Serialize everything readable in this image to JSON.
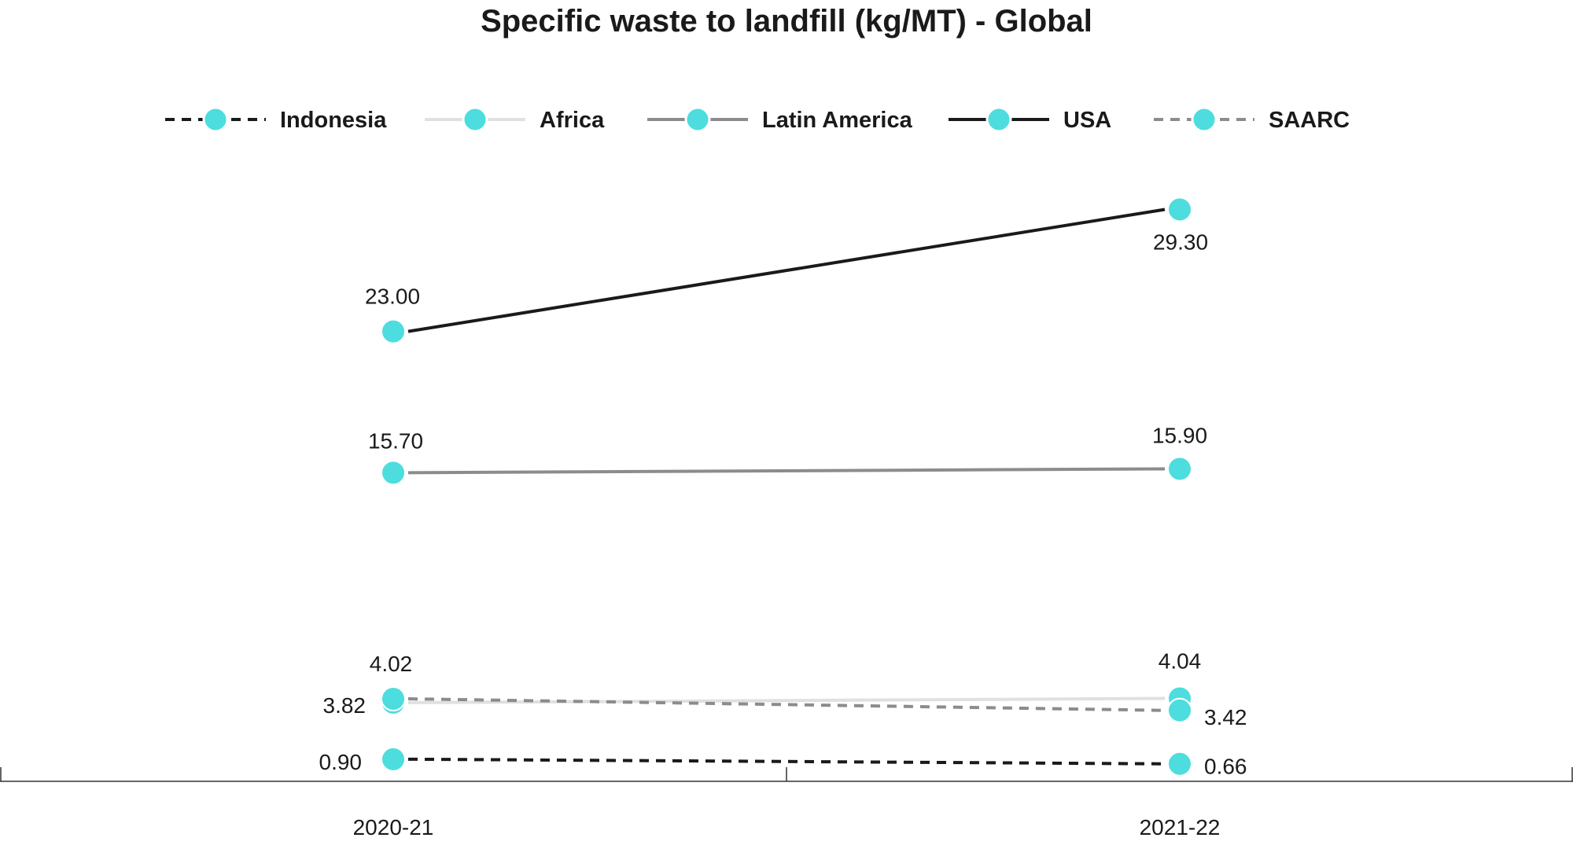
{
  "chart_data": {
    "type": "line",
    "title": "Specific waste to landfill (kg/MT) - Global",
    "xlabel": "",
    "ylabel": "",
    "categories": [
      "2020-21",
      "2021-22"
    ],
    "ylim": [
      0,
      32
    ],
    "grid": false,
    "legend_position": "top",
    "marker_color": "#4dddde",
    "series": [
      {
        "name": "Indonesia",
        "values": [
          0.9,
          0.66
        ],
        "labels": [
          "0.90",
          "0.66"
        ],
        "line_color": "#1a1a1a",
        "line_style": "dashed"
      },
      {
        "name": "Africa",
        "values": [
          3.82,
          4.04
        ],
        "labels": [
          "3.82",
          "4.04"
        ],
        "line_color": "#e0e0e0",
        "line_style": "solid"
      },
      {
        "name": "Latin America",
        "values": [
          15.7,
          15.9
        ],
        "labels": [
          "15.70",
          "15.90"
        ],
        "line_color": "#8c8c8c",
        "line_style": "solid"
      },
      {
        "name": "USA",
        "values": [
          23.0,
          29.3
        ],
        "labels": [
          "23.00",
          "29.30"
        ],
        "line_color": "#1a1a1a",
        "line_style": "solid"
      },
      {
        "name": "SAARC",
        "values": [
          4.02,
          3.42
        ],
        "labels": [
          "4.02",
          "3.42"
        ],
        "line_color": "#8c8c8c",
        "line_style": "dashed"
      }
    ]
  }
}
